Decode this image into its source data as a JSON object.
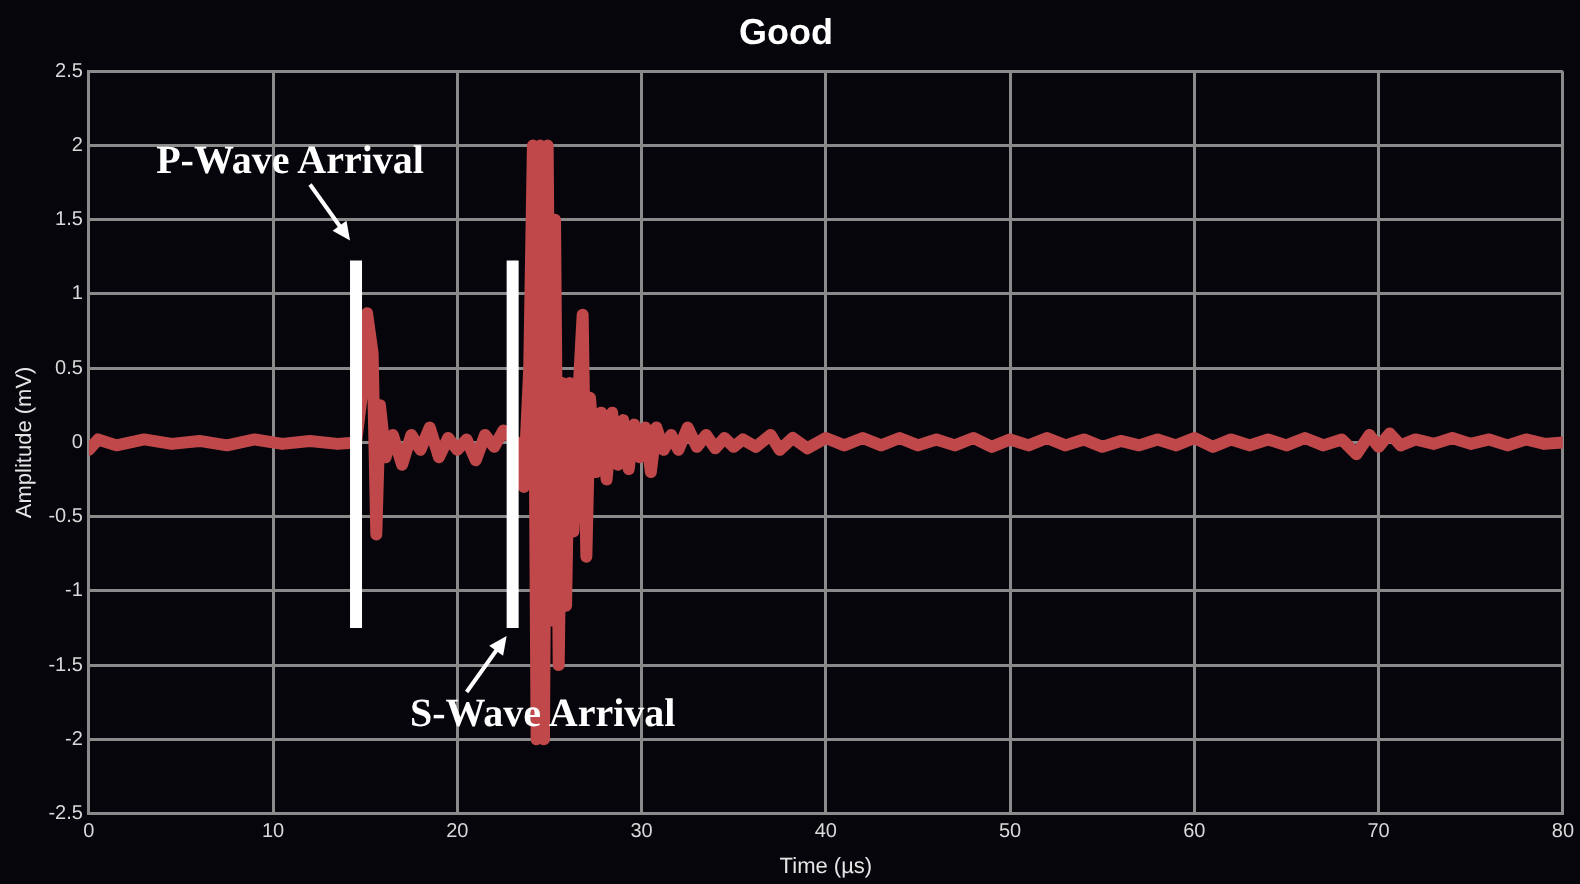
{
  "chart_data": {
    "type": "line",
    "title": "Good",
    "xlabel": "Time (µs)",
    "ylabel": "Amplitude (mV)",
    "xlim": [
      0,
      80
    ],
    "xticks": [
      0,
      10,
      20,
      30,
      40,
      50,
      60,
      70,
      80
    ],
    "ylim": [
      -2.5,
      2.5
    ],
    "yticks": [
      -2.5,
      -2,
      -1.5,
      -1,
      -0.5,
      0,
      0.5,
      1,
      1.5,
      2,
      2.5
    ],
    "grid": true,
    "legend": false,
    "marker": "none",
    "line_style": "solid",
    "ref_lines": [
      {
        "axis": "x",
        "value": 14.5,
        "label": "P-Wave Arrival",
        "color": "#ffffff"
      },
      {
        "axis": "x",
        "value": 23,
        "label": "S-Wave Arrival",
        "color": "#ffffff"
      }
    ],
    "series": [
      {
        "color": "#c0484a",
        "x": [
          0,
          0.5,
          1.5,
          3,
          4.5,
          6,
          7.5,
          9,
          10.5,
          12,
          13.5,
          14.5,
          14.8,
          15.1,
          15.4,
          15.6,
          15.8,
          16.1,
          16.5,
          17,
          17.5,
          18,
          18.5,
          19,
          19.5,
          20,
          20.5,
          21,
          21.5,
          22,
          22.5,
          23.2,
          23.6,
          23.9,
          24.1,
          24.3,
          24.5,
          24.7,
          24.9,
          25.1,
          25.3,
          25.5,
          25.7,
          25.9,
          26.1,
          26.3,
          26.6,
          26.8,
          27,
          27.2,
          27.5,
          27.8,
          28.1,
          28.4,
          28.7,
          29,
          29.3,
          29.6,
          29.9,
          30.2,
          30.5,
          30.8,
          31.2,
          31.6,
          32,
          32.5,
          33,
          33.5,
          34,
          34.5,
          35,
          35.5,
          36.2,
          37,
          37.5,
          38.2,
          39,
          40,
          41,
          42,
          43,
          44,
          45,
          46,
          47,
          48,
          49,
          50,
          51,
          52,
          53,
          54,
          55,
          56,
          57,
          58,
          59,
          60,
          61,
          62,
          63,
          64,
          65,
          66,
          67,
          68,
          68.8,
          69.5,
          70,
          70.6,
          71.2,
          72,
          73,
          74,
          75,
          76,
          77,
          78,
          79,
          80
        ],
        "values": [
          -0.05,
          0.02,
          -0.02,
          0.02,
          -0.01,
          0.01,
          -0.02,
          0.02,
          -0.01,
          0.01,
          -0.01,
          0,
          0.3,
          0.87,
          0.6,
          -0.62,
          0.25,
          -0.1,
          0.05,
          -0.15,
          0.05,
          -0.05,
          0.1,
          -0.1,
          0.03,
          -0.05,
          0.02,
          -0.12,
          0.05,
          -0.03,
          0.08,
          0,
          -0.3,
          0.5,
          2,
          -2,
          2,
          -2,
          2,
          -1.2,
          1.5,
          -1.5,
          0.4,
          -1.1,
          0.4,
          -0.6,
          0.4,
          0.86,
          -0.77,
          0.3,
          -0.2,
          0.2,
          -0.25,
          0.2,
          -0.15,
          0.15,
          -0.18,
          0.12,
          -0.1,
          0.1,
          -0.2,
          0.1,
          -0.05,
          0.05,
          -0.05,
          0.1,
          -0.03,
          0.05,
          -0.04,
          0.03,
          -0.03,
          0.02,
          -0.03,
          0.05,
          -0.05,
          0.03,
          -0.04,
          0.03,
          -0.02,
          0.03,
          -0.02,
          0.03,
          -0.02,
          0.02,
          -0.02,
          0.03,
          -0.03,
          0.02,
          -0.02,
          0.03,
          -0.02,
          0.02,
          -0.03,
          0.01,
          -0.02,
          0.02,
          -0.02,
          0.03,
          -0.03,
          0.02,
          -0.02,
          0.02,
          -0.02,
          0.03,
          -0.02,
          0.02,
          -0.08,
          0.05,
          -0.03,
          0.06,
          -0.02,
          0.02,
          -0.01,
          0.03,
          -0.01,
          0.02,
          -0.02,
          0.02,
          -0.01,
          0
        ]
      }
    ]
  }
}
